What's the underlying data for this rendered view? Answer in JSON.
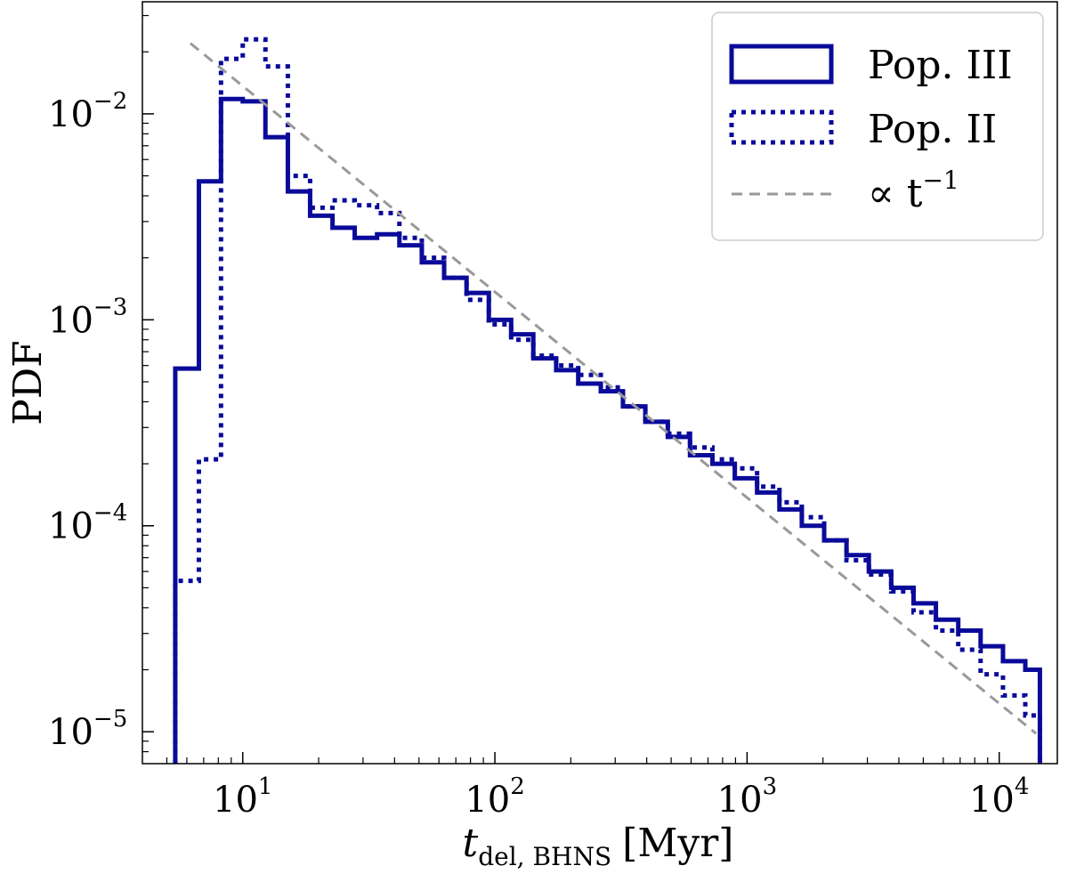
{
  "chart_data": {
    "type": "step-histogram",
    "xscale": "log",
    "yscale": "log",
    "xlim": [
      4.0,
      17000
    ],
    "ylim": [
      7e-06,
      0.035
    ],
    "xlabel": {
      "main": "t",
      "sub": "del, BHNS",
      "unit": "[Myr]"
    },
    "ylabel": "PDF",
    "xticks": [
      {
        "value": 10,
        "base": "10",
        "exp": "1"
      },
      {
        "value": 100,
        "base": "10",
        "exp": "2"
      },
      {
        "value": 1000,
        "base": "10",
        "exp": "3"
      },
      {
        "value": 10000,
        "base": "10",
        "exp": "4"
      }
    ],
    "yticks": [
      {
        "value": 0.01,
        "base": "10",
        "exp": "−2"
      },
      {
        "value": 0.001,
        "base": "10",
        "exp": "−3"
      },
      {
        "value": 0.0001,
        "base": "10",
        "exp": "−4"
      },
      {
        "value": 1e-05,
        "base": "10",
        "exp": "−5"
      }
    ],
    "bin_edges": [
      5.4,
      6.7,
      8.2,
      10.0,
      12.3,
      15.1,
      18.5,
      22.7,
      27.8,
      34.1,
      41.8,
      51.3,
      62.9,
      77.2,
      94.6,
      116,
      142,
      175,
      214,
      263,
      322,
      395,
      485,
      594,
      729,
      894,
      1096,
      1344,
      1649,
      2022,
      2480,
      3041,
      3730,
      4574,
      5610,
      6880,
      8438,
      10350,
      12690,
      14500
    ],
    "series": [
      {
        "name": "Pop. III",
        "style": "solid",
        "color": "#0a0a9a",
        "values": [
          0.00058,
          0.0047,
          0.0118,
          0.0115,
          0.0077,
          0.0042,
          0.0032,
          0.0028,
          0.0025,
          0.0026,
          0.0023,
          0.0019,
          0.0016,
          0.00135,
          0.001,
          0.00085,
          0.00065,
          0.00057,
          0.00049,
          0.00045,
          0.00038,
          0.00032,
          0.00027,
          0.00022,
          0.0002,
          0.00017,
          0.000145,
          0.00012,
          0.0001,
          8.5e-05,
          7.2e-05,
          6e-05,
          5e-05,
          4.2e-05,
          3.5e-05,
          3.1e-05,
          2.6e-05,
          2.2e-05,
          2e-05
        ]
      },
      {
        "name": "Pop. II",
        "style": "dotted",
        "color": "#0a0a9a",
        "values": [
          5.4e-05,
          0.00021,
          0.0185,
          0.023,
          0.017,
          0.005,
          0.0035,
          0.0038,
          0.0036,
          0.0033,
          0.0025,
          0.002,
          0.0016,
          0.00125,
          0.00095,
          0.0008,
          0.00067,
          0.0006,
          0.00054,
          0.00047,
          0.00038,
          0.00032,
          0.00028,
          0.00024,
          0.00021,
          0.00019,
          0.000155,
          0.00013,
          0.00011,
          8.5e-05,
          6.8e-05,
          5.8e-05,
          4.8e-05,
          3.8e-05,
          3.1e-05,
          2.5e-05,
          1.9e-05,
          1.5e-05,
          1.2e-05
        ]
      },
      {
        "name": "∝ t⁻¹",
        "style": "dashed",
        "color": "#999999",
        "type": "line",
        "x": [
          6.2,
          14000
        ],
        "y": [
          0.022,
          9.8e-06
        ]
      }
    ],
    "legend": [
      {
        "label": "Pop. III",
        "style": "solid"
      },
      {
        "label": "Pop. II",
        "style": "dotted"
      },
      {
        "label": "∝ t",
        "exp": "−1",
        "style": "dashed"
      }
    ],
    "legend_position": "top-right"
  }
}
